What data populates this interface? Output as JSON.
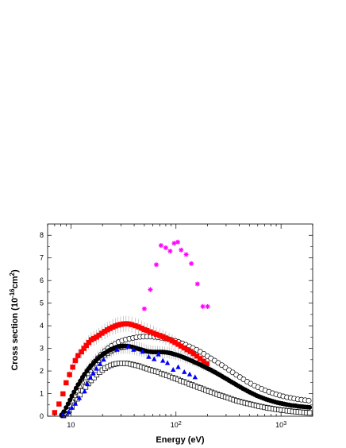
{
  "chart_data": {
    "type": "scatter",
    "xlabel": "Energy (eV)",
    "ylabel_parts": {
      "main": "Cross section (10",
      "sup1": "-16",
      "mid": "cm",
      "sup2": "2",
      "end": ")"
    },
    "x_scale": "log",
    "xlim": [
      6,
      2000
    ],
    "ylim": [
      0,
      8.5
    ],
    "y_ticks": [
      0,
      1,
      2,
      3,
      4,
      5,
      6,
      7,
      8
    ],
    "x_ticks": [
      {
        "value": 10,
        "base": "10",
        "exp": ""
      },
      {
        "value": 100,
        "base": "10",
        "exp": "2"
      },
      {
        "value": 1000,
        "base": "10",
        "exp": "3"
      }
    ],
    "grid": false,
    "series": [
      {
        "marker": "filled-square",
        "color": "#ff0000",
        "x": [
          7,
          7.7,
          8.4,
          9,
          9.7,
          10.4,
          11,
          11.7,
          12.6,
          13.3,
          14,
          14.8,
          15.6,
          16.5,
          17.5,
          18.5,
          19.7,
          21,
          22.2,
          23.5,
          25,
          26.5,
          28,
          29.7,
          31.5,
          33.5,
          35.5,
          38,
          41,
          44,
          47,
          50,
          53,
          57,
          61,
          65,
          70,
          75,
          80,
          86,
          92,
          98,
          105,
          112,
          120,
          128,
          137,
          147,
          158,
          170,
          183,
          197
        ],
        "y": [
          0.16,
          0.54,
          0.99,
          1.48,
          1.84,
          2.17,
          2.46,
          2.68,
          2.85,
          3.0,
          3.13,
          3.26,
          3.38,
          3.44,
          3.5,
          3.58,
          3.67,
          3.75,
          3.82,
          3.88,
          3.94,
          3.99,
          4.03,
          4.06,
          4.08,
          4.09,
          4.08,
          4.05,
          4.0,
          3.95,
          3.89,
          3.83,
          3.79,
          3.73,
          3.67,
          3.62,
          3.57,
          3.52,
          3.46,
          3.4,
          3.33,
          3.26,
          3.18,
          3.1,
          3.02,
          2.94,
          2.86,
          2.77,
          2.66,
          2.55,
          2.43,
          2.32
        ],
        "yerr": [
          0.03,
          0.06,
          0.08,
          0.12,
          0.16,
          0.2,
          0.25,
          0.28,
          0.3,
          0.31,
          0.32,
          0.33,
          0.33,
          0.33,
          0.33,
          0.33,
          0.33,
          0.34,
          0.34,
          0.34,
          0.35,
          0.35,
          0.35,
          0.35,
          0.35,
          0.35,
          0.35,
          0.35,
          0.35,
          0.34,
          0.34,
          0.33,
          0.33,
          0.32,
          0.32,
          0.31,
          0.31,
          0.3,
          0.3,
          0.29,
          0.29,
          0.28,
          0.27,
          0.27,
          0.26,
          0.25,
          0.25,
          0.24,
          0.23,
          0.22,
          0.21,
          0.2
        ]
      },
      {
        "marker": "open-circle",
        "color": "#000000",
        "x": [
          8.2,
          8.6,
          9.2,
          9.8,
          10.4,
          11,
          11.8,
          12.6,
          13.5,
          14.5,
          15.5,
          16.7,
          18,
          19.4,
          21,
          22.6,
          24.4,
          26.3,
          28.4,
          30.7,
          33.2,
          36,
          39,
          42,
          45.5,
          49,
          53,
          57.5,
          62,
          67,
          72.5,
          78,
          84.5,
          91,
          98.5,
          106,
          115,
          124,
          134,
          145,
          157,
          170,
          184,
          199,
          215,
          233,
          252,
          273,
          295,
          320,
          346,
          375,
          406,
          440,
          476,
          515,
          558,
          604,
          654,
          708,
          767,
          830,
          899,
          973,
          1050,
          1140,
          1235,
          1335,
          1445,
          1565,
          1695,
          1835
        ],
        "y": [
          0.05,
          0.18,
          0.35,
          0.55,
          0.8,
          1.05,
          1.32,
          1.58,
          1.82,
          2.03,
          2.22,
          2.4,
          2.57,
          2.73,
          2.88,
          3.0,
          3.11,
          3.2,
          3.28,
          3.34,
          3.39,
          3.43,
          3.46,
          3.49,
          3.51,
          3.52,
          3.52,
          3.52,
          3.51,
          3.49,
          3.47,
          3.44,
          3.41,
          3.37,
          3.33,
          3.28,
          3.22,
          3.16,
          3.09,
          3.02,
          2.94,
          2.85,
          2.76,
          2.66,
          2.56,
          2.46,
          2.36,
          2.26,
          2.15,
          2.04,
          1.94,
          1.83,
          1.73,
          1.63,
          1.53,
          1.44,
          1.36,
          1.28,
          1.21,
          1.14,
          1.08,
          1.02,
          0.97,
          0.92,
          0.88,
          0.84,
          0.81,
          0.78,
          0.75,
          0.73,
          0.71,
          0.69
        ]
      },
      {
        "marker": "open-triangle",
        "color": "#000000",
        "x": [
          8.4,
          8.8,
          9.3,
          9.8,
          10.3,
          10.9,
          11.5,
          12.2,
          12.9,
          13.7,
          14.5,
          15.4,
          16.3,
          17.3,
          18.4,
          19.6,
          20.9,
          22.3,
          23.8,
          25.4,
          27.1,
          28.9,
          30.8,
          32.8
        ],
        "y": [
          0.04,
          0.15,
          0.3,
          0.48,
          0.68,
          0.9,
          1.11,
          1.32,
          1.52,
          1.7,
          1.88,
          2.04,
          2.19,
          2.33,
          2.46,
          2.58,
          2.69,
          2.78,
          2.86,
          2.93,
          2.98,
          3.02,
          3.04,
          3.05
        ]
      },
      {
        "marker": "filled-circle",
        "color": "#000000",
        "x": [
          8.2,
          8.6,
          9,
          9.4,
          9.8,
          10.2,
          10.7,
          11.2,
          11.7,
          12.3,
          12.9,
          13.5,
          14.2,
          14.9,
          15.6,
          16.4,
          17.2,
          18.1,
          19,
          20,
          21,
          22.1,
          23.2,
          24.4,
          25.7,
          27,
          28.4,
          29.9,
          31.4,
          33,
          34.7,
          36.5,
          38.4,
          40.4,
          42.5,
          44.7,
          47,
          49.4,
          52,
          54.7,
          57.5,
          60.5,
          63.6,
          66.9,
          70.4,
          74,
          77.9,
          81.9,
          86.1,
          90.6,
          95.3,
          100,
          105,
          111,
          117,
          123,
          129,
          136,
          143,
          150,
          158,
          166,
          175,
          184,
          193,
          203,
          214,
          225,
          236,
          249,
          262,
          275,
          290,
          305,
          320,
          337,
          354,
          373,
          392,
          412,
          434,
          456,
          480,
          505,
          531,
          558,
          587,
          617,
          649,
          683,
          718,
          755,
          794,
          835,
          878,
          924,
          971,
          1020,
          1075,
          1130,
          1190,
          1250,
          1315,
          1380,
          1455,
          1530,
          1610,
          1690,
          1780,
          1870
        ],
        "y": [
          0.06,
          0.2,
          0.38,
          0.55,
          0.72,
          0.9,
          1.07,
          1.24,
          1.4,
          1.56,
          1.72,
          1.86,
          2.0,
          2.12,
          2.24,
          2.35,
          2.45,
          2.55,
          2.64,
          2.72,
          2.79,
          2.86,
          2.92,
          2.97,
          3.01,
          3.05,
          3.08,
          3.1,
          3.11,
          3.11,
          3.1,
          3.08,
          3.06,
          3.03,
          3.0,
          2.97,
          2.94,
          2.91,
          2.88,
          2.86,
          2.85,
          2.84,
          2.84,
          2.84,
          2.84,
          2.84,
          2.83,
          2.82,
          2.8,
          2.78,
          2.75,
          2.72,
          2.69,
          2.65,
          2.61,
          2.57,
          2.53,
          2.48,
          2.44,
          2.39,
          2.35,
          2.3,
          2.25,
          2.2,
          2.15,
          2.1,
          2.05,
          1.99,
          1.94,
          1.88,
          1.82,
          1.76,
          1.7,
          1.64,
          1.58,
          1.52,
          1.46,
          1.4,
          1.34,
          1.28,
          1.22,
          1.17,
          1.11,
          1.06,
          1.01,
          0.96,
          0.91,
          0.87,
          0.83,
          0.79,
          0.75,
          0.72,
          0.69,
          0.66,
          0.63,
          0.6,
          0.58,
          0.56,
          0.54,
          0.52,
          0.5,
          0.48,
          0.47,
          0.46,
          0.44,
          0.43,
          0.42,
          0.41,
          0.4,
          0.39
        ],
        "yerr": [
          0.03,
          0.05,
          0.07,
          0.09,
          0.11,
          0.13,
          0.15,
          0.17,
          0.19,
          0.21,
          0.23,
          0.25,
          0.27,
          0.28,
          0.29,
          0.3,
          0.31,
          0.32,
          0.33,
          0.34,
          0.34,
          0.35,
          0.35,
          0.35,
          0.35,
          0.35,
          0.35,
          0.35,
          0.35,
          0.34,
          0.34,
          0.33,
          0.33,
          0.32,
          0.32,
          0.31,
          0.3,
          0.3,
          0.29,
          0.29,
          0.28,
          0.28,
          0.27,
          0.27,
          0.26,
          0.26,
          0.26,
          0.25,
          0.25,
          0.25,
          0.24,
          0.24,
          0.23,
          0.23,
          0.22,
          0.22,
          0.21,
          0.21,
          0.2,
          0.2,
          0.19,
          0.19,
          0.18,
          0.18,
          0.17,
          0.17,
          0.16,
          0.16,
          0.15,
          0.15,
          0.14,
          0.14,
          0.13,
          0.13,
          0.12,
          0.12,
          0.11,
          0.11,
          0.1,
          0.1,
          0.09,
          0.09,
          0.09,
          0.08,
          0.08,
          0.08,
          0.07,
          0.07,
          0.07,
          0.06,
          0.06,
          0.06,
          0.05,
          0.05,
          0.05,
          0.05,
          0.04,
          0.04,
          0.04,
          0.04,
          0.04,
          0.03,
          0.03,
          0.03,
          0.03,
          0.03,
          0.03,
          0.03,
          0.03,
          0.02
        ]
      },
      {
        "marker": "open-square",
        "color": "#000000",
        "x": [
          8.5,
          9,
          9.6,
          10.2,
          10.8,
          11.5,
          12.2,
          13,
          13.8,
          14.7,
          15.6,
          16.6,
          17.6,
          18.7,
          19.9,
          21.2,
          22.5,
          24,
          25.5,
          27.1,
          28.8,
          30.6,
          32.6,
          34.7,
          36.9,
          39.2,
          41.7,
          44.3,
          47.1,
          50.1,
          53.3,
          56.7,
          60.3,
          64.1,
          68.2,
          72.5,
          77.1,
          82,
          87.2,
          92.7,
          98.6,
          105,
          111,
          118,
          126,
          134,
          142,
          151,
          161,
          171,
          182,
          193,
          205,
          218,
          232,
          247,
          262,
          279,
          296,
          315,
          335,
          356,
          379,
          403,
          428,
          455,
          484,
          515,
          547,
          582,
          619,
          658,
          700,
          744,
          791,
          841,
          894,
          951,
          1010,
          1075,
          1145,
          1215,
          1295,
          1375,
          1460,
          1555,
          1655,
          1760,
          1870
        ],
        "y": [
          0.03,
          0.12,
          0.25,
          0.41,
          0.59,
          0.77,
          0.95,
          1.12,
          1.29,
          1.44,
          1.58,
          1.71,
          1.83,
          1.94,
          2.04,
          2.12,
          2.19,
          2.25,
          2.29,
          2.32,
          2.34,
          2.34,
          2.34,
          2.33,
          2.31,
          2.28,
          2.25,
          2.22,
          2.18,
          2.14,
          2.1,
          2.06,
          2.02,
          1.98,
          1.94,
          1.89,
          1.85,
          1.8,
          1.76,
          1.71,
          1.67,
          1.62,
          1.57,
          1.53,
          1.48,
          1.43,
          1.39,
          1.34,
          1.29,
          1.25,
          1.2,
          1.15,
          1.11,
          1.06,
          1.02,
          0.97,
          0.93,
          0.89,
          0.85,
          0.81,
          0.77,
          0.73,
          0.69,
          0.65,
          0.62,
          0.59,
          0.56,
          0.53,
          0.5,
          0.47,
          0.44,
          0.42,
          0.39,
          0.37,
          0.35,
          0.33,
          0.31,
          0.29,
          0.27,
          0.26,
          0.24,
          0.23,
          0.21,
          0.2,
          0.19,
          0.18,
          0.17,
          0.16,
          0.15
        ]
      },
      {
        "marker": "filled-triangle",
        "color": "#0000ff",
        "x": [
          8.4,
          9.5,
          10.2,
          11,
          12,
          13.5,
          14.3,
          15.3,
          16.3,
          17.5,
          19,
          20.5,
          27.5,
          35,
          39.5,
          48,
          55,
          62,
          68,
          75,
          83,
          94,
          105,
          120,
          135,
          152
        ],
        "y": [
          0.06,
          0.17,
          0.37,
          0.55,
          0.8,
          1.1,
          1.43,
          1.7,
          1.9,
          2.1,
          2.3,
          2.5,
          2.94,
          3.08,
          2.94,
          2.85,
          2.62,
          2.52,
          2.73,
          2.45,
          2.35,
          2.05,
          2.17,
          1.95,
          1.85,
          1.72
        ]
      },
      {
        "marker": "star",
        "color": "#ff00ff",
        "x": [
          50,
          57,
          65,
          72,
          80,
          88,
          96,
          104,
          112,
          125,
          140,
          160,
          180,
          200
        ],
        "y": [
          4.75,
          5.6,
          6.7,
          7.55,
          7.45,
          7.3,
          7.65,
          7.7,
          7.35,
          7.15,
          6.75,
          5.85,
          4.85,
          4.85
        ]
      }
    ]
  }
}
